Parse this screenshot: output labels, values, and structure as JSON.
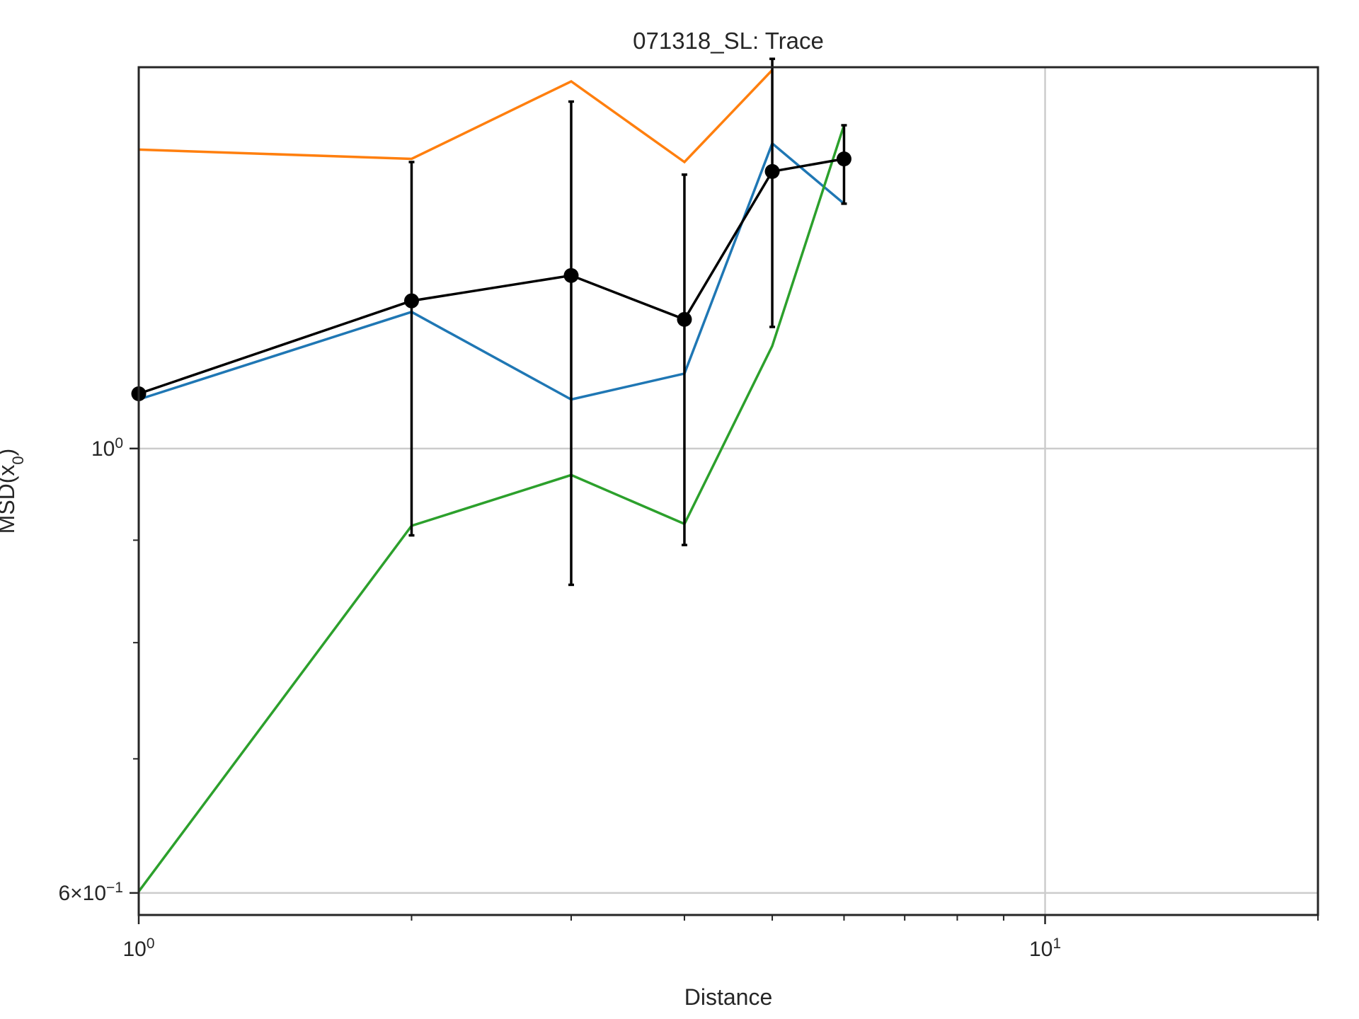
{
  "chart_data": {
    "type": "line",
    "title": "071318_SL: Trace",
    "xlabel": "Distance",
    "ylabel": "MSD(x",
    "ylabel_sub": "0",
    "ylabel_suffix": ")",
    "xscale": "log",
    "yscale": "log",
    "xlim": [
      1,
      20
    ],
    "ylim": [
      0.585,
      1.55
    ],
    "grid": true,
    "x_ticks": [
      {
        "value": 1,
        "base": "10",
        "exp": "0"
      },
      {
        "value": 10,
        "base": "10",
        "exp": "1"
      }
    ],
    "y_ticks": [
      {
        "value": 1.0,
        "base": "10",
        "exp": "0",
        "prefix": ""
      },
      {
        "value": 0.6,
        "base": "10",
        "exp": "−1",
        "prefix": "6×"
      }
    ],
    "series": [
      {
        "color": "#ff7f0e",
        "x": [
          1,
          2,
          3,
          4,
          5
        ],
        "y": [
          1.41,
          1.395,
          1.525,
          1.39,
          1.545
        ]
      },
      {
        "color": "#1f77b4",
        "x": [
          1,
          2,
          3,
          4,
          5,
          6
        ],
        "y": [
          1.058,
          1.17,
          1.058,
          1.09,
          1.42,
          1.325
        ]
      },
      {
        "color": "#2ca02c",
        "x": [
          1,
          2,
          3,
          4,
          5,
          6
        ],
        "y": [
          0.601,
          0.915,
          0.97,
          0.917,
          1.125,
          1.45
        ]
      },
      {
        "color": "#000000",
        "markers": true,
        "x": [
          1,
          2,
          3,
          4,
          5,
          6
        ],
        "y": [
          1.065,
          1.185,
          1.22,
          1.16,
          1.375,
          1.395
        ],
        "err_low": [
          null,
          0.905,
          0.855,
          0.895,
          1.15,
          1.325
        ],
        "err_high": [
          null,
          1.39,
          1.49,
          1.37,
          1.565,
          1.45
        ]
      }
    ]
  }
}
